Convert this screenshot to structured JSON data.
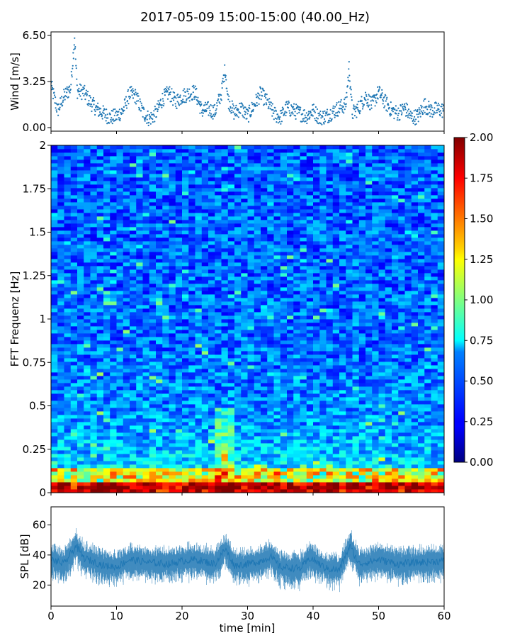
{
  "title": "2017-05-09 15:00-15:00 (40.00_Hz)",
  "chart_data": [
    {
      "type": "scatter",
      "panel": "wind",
      "ylabel": "Wind [m/s]",
      "xlim": [
        0,
        60
      ],
      "ylim": [
        0,
        6.5
      ],
      "yticks": [
        0.0,
        3.25,
        6.5
      ],
      "ytick_labels": [
        "0.00",
        "3.25",
        "6.50"
      ],
      "color": "#1f77b4",
      "x": [
        0,
        1,
        2,
        3,
        3.6,
        4,
        5,
        6,
        7,
        8,
        9,
        10,
        11,
        12,
        13,
        14,
        15,
        16,
        17,
        18,
        19,
        20,
        21,
        22,
        23,
        24,
        25,
        26,
        26.6,
        27,
        28,
        29,
        30,
        31,
        32,
        33,
        34,
        35,
        36,
        37,
        38,
        39,
        40,
        41,
        42,
        43,
        44,
        45,
        45.5,
        46,
        47,
        48,
        49,
        50,
        51,
        52,
        53,
        54,
        55,
        56,
        57,
        58,
        59,
        60
      ],
      "y": [
        3.0,
        1.2,
        2.2,
        2.8,
        6.4,
        2.6,
        2.5,
        1.8,
        1.3,
        1.0,
        0.7,
        0.8,
        1.2,
        2.4,
        2.2,
        1.1,
        0.6,
        1.0,
        2.0,
        2.5,
        1.8,
        2.2,
        2.4,
        2.5,
        1.2,
        1.3,
        1.1,
        2.4,
        4.2,
        2.0,
        1.0,
        1.4,
        0.8,
        1.6,
        2.4,
        1.8,
        1.0,
        0.7,
        1.4,
        1.2,
        1.0,
        0.8,
        1.2,
        0.7,
        0.8,
        1.1,
        1.4,
        1.6,
        4.3,
        1.0,
        1.4,
        2.2,
        1.6,
        2.5,
        1.8,
        1.2,
        1.0,
        1.4,
        0.7,
        0.8,
        1.6,
        1.2,
        1.3,
        1.2
      ]
    },
    {
      "type": "heatmap",
      "panel": "spectrogram",
      "ylabel": "FFT Frequenz [Hz]",
      "xlim": [
        0,
        60
      ],
      "ylim": [
        0,
        2
      ],
      "yticks": [
        0,
        0.25,
        0.5,
        0.75,
        1,
        1.25,
        1.5,
        1.75,
        2
      ],
      "ytick_labels": [
        "0",
        "0.25",
        "0.5",
        "0.75",
        "1",
        "1.25",
        "1.5",
        "1.75",
        "2"
      ],
      "colormap": "jet",
      "vmin": 0,
      "vmax": 2,
      "colorbar_ticks": [
        "0.00",
        "0.25",
        "0.50",
        "0.75",
        "1.00",
        "1.25",
        "1.50",
        "1.75",
        "2.00"
      ],
      "note_free": true
    },
    {
      "type": "line",
      "panel": "spl",
      "xlabel": "time [min]",
      "ylabel": "SPL [dB]",
      "xlim": [
        0,
        60
      ],
      "ylim": [
        6,
        72
      ],
      "yticks": [
        20,
        40,
        60
      ],
      "xticks": [
        0,
        10,
        20,
        30,
        40,
        50,
        60
      ],
      "color": "#1f77b4",
      "x": [
        0,
        2,
        3.8,
        5,
        8,
        10,
        12,
        15,
        18,
        20,
        22,
        25,
        26.6,
        28,
        30,
        32,
        33.5,
        35,
        38,
        39.6,
        42,
        44,
        45.6,
        47,
        50,
        53,
        56,
        60
      ],
      "y": [
        37,
        34,
        46,
        38,
        33,
        32,
        37,
        35,
        34,
        36,
        37,
        34,
        44,
        33,
        34,
        36,
        39,
        32,
        31,
        38,
        31,
        30,
        46,
        34,
        37,
        34,
        35,
        36
      ]
    }
  ]
}
